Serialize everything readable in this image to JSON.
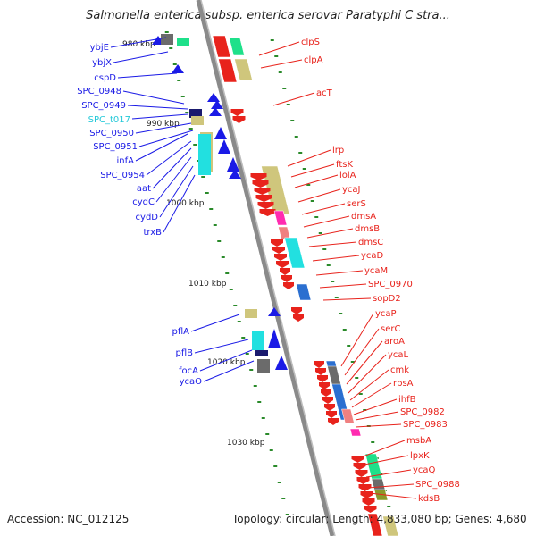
{
  "title": "Salmonella enterica subsp. enterica serovar Paratyphi C stra...",
  "accession": "Accession: NC_012125",
  "summary": "Topology: circular; Length: 4,833,080 bp; Genes: 4,680",
  "scale_labels": [
    "980 kbp",
    "990 kbp",
    "1000 kbp",
    "1010 kbp",
    "1020 kbp",
    "1030 kbp"
  ],
  "left_genes": [
    "ybjE",
    "ybjX",
    "cspD",
    "SPC_0948",
    "SPC_0949",
    "SPC_t017",
    "SPC_0950",
    "SPC_0951",
    "infA",
    "SPC_0954",
    "aat",
    "cydC",
    "cydD",
    "trxB",
    "pflA",
    "pflB",
    "focA",
    "ycaO"
  ],
  "right_genes": [
    "clpS",
    "clpA",
    "acT",
    "lrp",
    "ftsK",
    "lolA",
    "ycaJ",
    "serS",
    "dmsA",
    "dmsB",
    "dmsC",
    "ycaD",
    "ycaM",
    "SPC_0970",
    "sopD2",
    "ycaP",
    "serC",
    "aroA",
    "ycaL",
    "cmk",
    "rpsA",
    "ihfB",
    "SPC_0982",
    "SPC_0983",
    "msbA",
    "lpxK",
    "ycaQ",
    "SPC_0988",
    "kdsB"
  ],
  "colors": {
    "backbone": "#8a8a8a",
    "forward_gene": "#e8231c",
    "reverse_gene": "#1a1ae6",
    "trna_label": "#22c8d8",
    "ticks": "#2a8a2a"
  }
}
